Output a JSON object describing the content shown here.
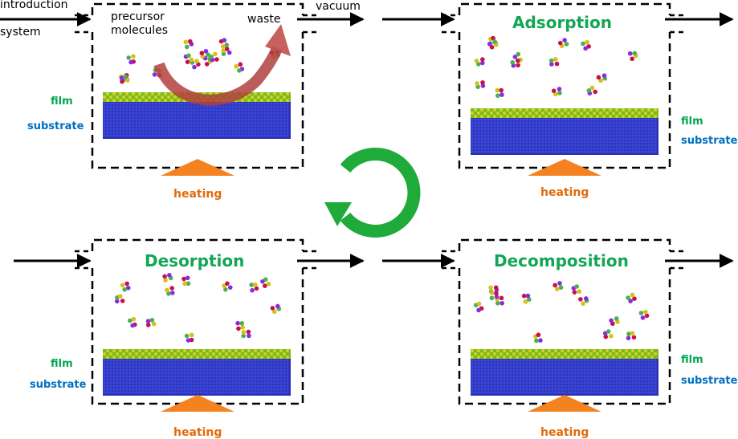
{
  "colors": {
    "title_green": "#13a654",
    "film_green": "#00a651",
    "substrate_blue": "#0070c0",
    "heating_orange": "#e26b0a",
    "heater_fill": "#f58220",
    "waste_arrow": "#c0504d",
    "cycle_arrow": "#1faa3a",
    "substrate_atoms": "#2a2fb4",
    "film_atoms": "#a8c424"
  },
  "labels": {
    "introduction": "introduction",
    "system": "system",
    "precursor_line1": "precursor",
    "precursor_line2": "molecules",
    "waste": "waste",
    "vacuum": "vacuum",
    "film": "film",
    "substrate": "substrate",
    "heating": "heating"
  },
  "stages": [
    {
      "title": ""
    },
    {
      "title": "Adsorption"
    },
    {
      "title": "Desorption"
    },
    {
      "title": "Decomposition"
    }
  ],
  "icons": {
    "cycle": "circular-arrow-icon",
    "waste": "curved-arrow-icon"
  }
}
